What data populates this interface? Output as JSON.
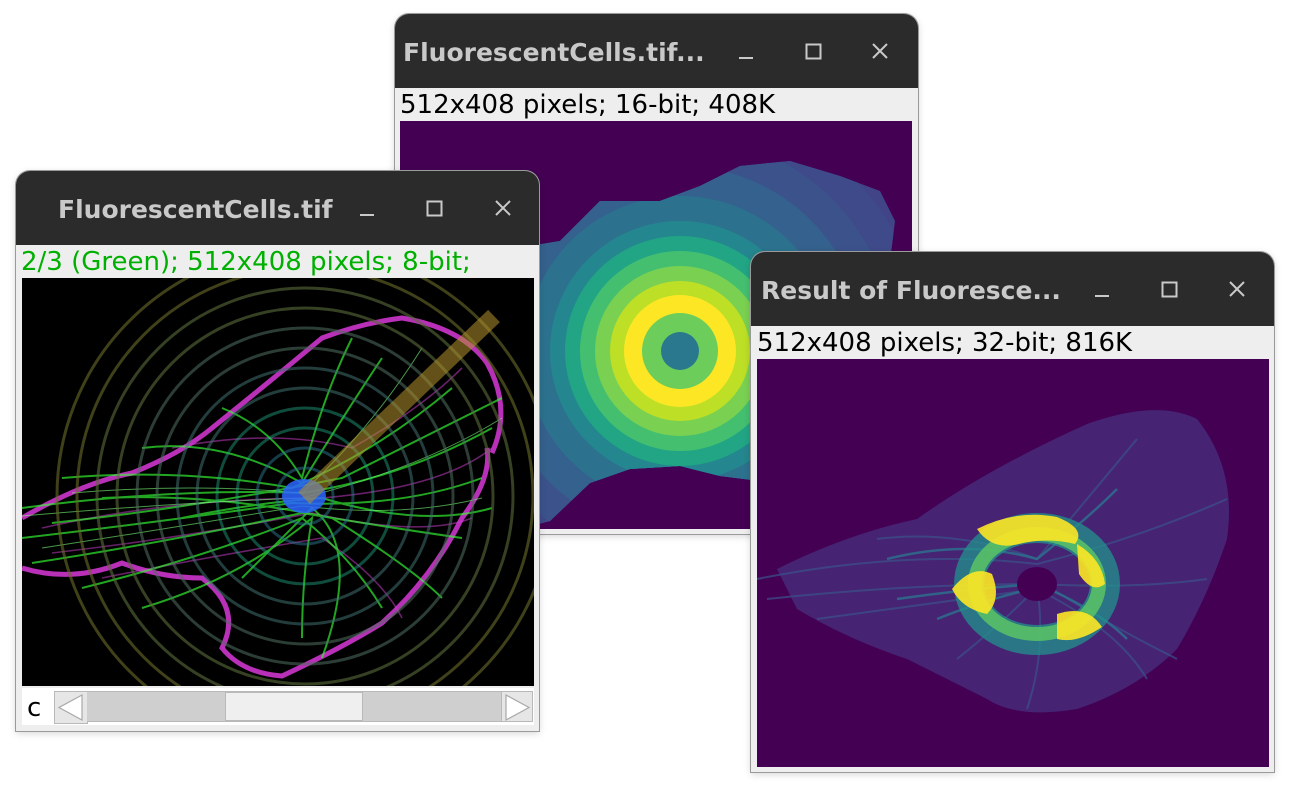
{
  "windows": {
    "distance_map": {
      "title": "FluorescentCells.tif...",
      "info": "512x408 pixels; 16-bit; 408K"
    },
    "cells": {
      "title": "FluorescentCells.tif",
      "info": "2/3 (Green); 512x408 pixels; 8-bit;",
      "info_color": "#00b000",
      "slider": {
        "label": "c",
        "channel": 2,
        "channel_count": 3
      }
    },
    "result": {
      "title": "Result of Fluoresce...",
      "info": "512x408 pixels; 32-bit; 816K"
    }
  },
  "colors": {
    "titlebar": "#2b2b2b",
    "title_text": "#c9c9c9",
    "window_bg": "#eeeeee",
    "viridis_dark": "#440154",
    "viridis_yellow": "#fde725",
    "cell_green": "#33ff33",
    "cell_magenta": "#ff33ff",
    "overlay_line": "#b5942e"
  },
  "icons": {
    "minimize": "minimize-icon",
    "maximize": "maximize-icon",
    "close": "close-icon",
    "scroll_left": "arrow-left-icon",
    "scroll_right": "arrow-right-icon"
  }
}
